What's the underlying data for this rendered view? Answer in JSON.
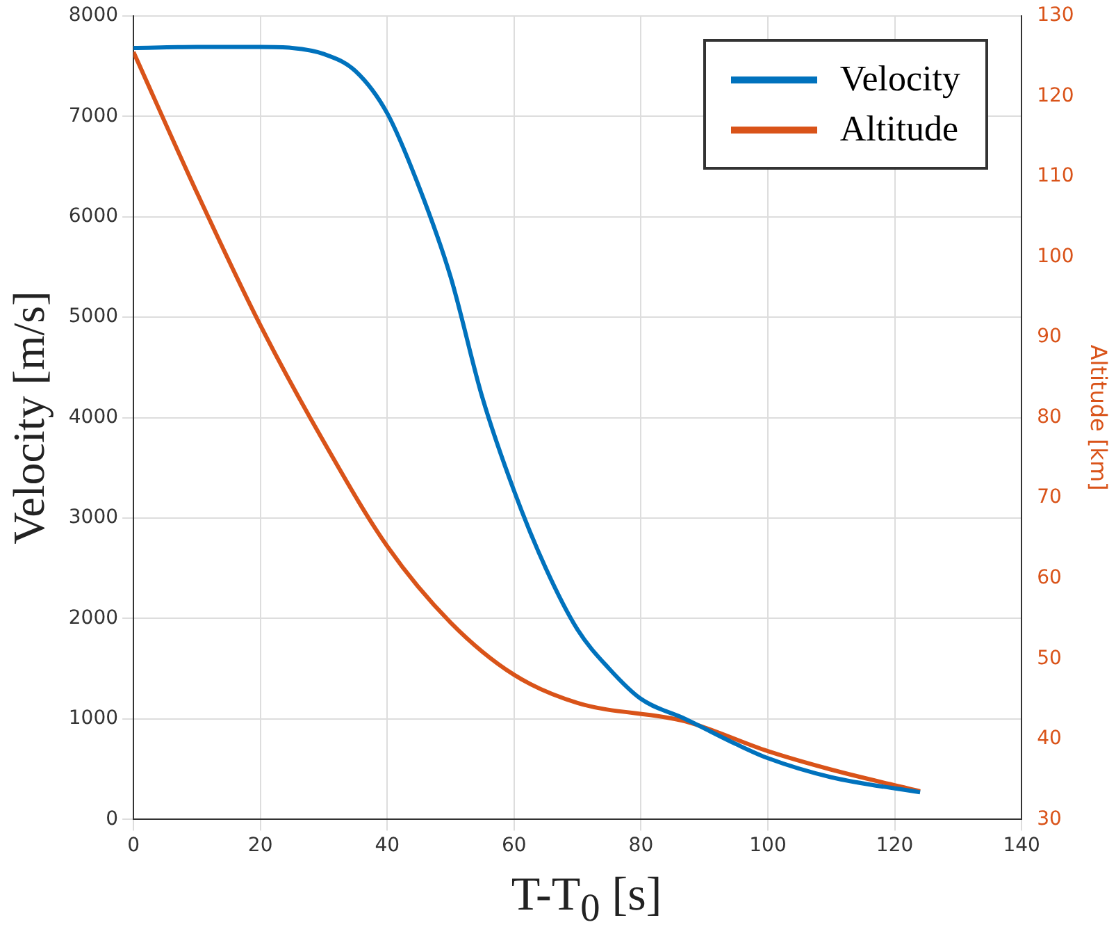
{
  "chart_data": {
    "type": "line",
    "xlabel": "T-T$_{0}$ [s]",
    "ylabel": "Velocity [m/s]",
    "y2label": "Altitude [km]",
    "xlim": [
      0,
      140
    ],
    "xticks": [
      0,
      20,
      40,
      60,
      80,
      100,
      120,
      140
    ],
    "ylim": [
      0,
      8000
    ],
    "yticks": [
      0,
      1000,
      2000,
      3000,
      4000,
      5000,
      6000,
      7000,
      8000
    ],
    "y2lim": [
      30,
      130
    ],
    "y2ticks": [
      30,
      40,
      50,
      60,
      70,
      80,
      90,
      100,
      110,
      120,
      130
    ],
    "grid": true,
    "legend": "top right",
    "marker": "none",
    "line_style": "solid",
    "series": [
      {
        "name": "Velocity",
        "color": "#0072bd",
        "x": [
          0,
          10,
          20,
          25,
          30,
          35,
          40,
          45,
          50,
          55,
          60,
          65,
          70,
          75,
          80,
          87,
          95,
          100,
          110,
          124
        ],
        "values": [
          7680,
          7690,
          7690,
          7680,
          7620,
          7450,
          7030,
          6300,
          5400,
          4200,
          3270,
          2500,
          1890,
          1500,
          1200,
          1000,
          750,
          610,
          420,
          270
        ]
      },
      {
        "name": "Altitude",
        "color": "#d95319",
        "axis": "y2",
        "x": [
          0,
          10,
          20,
          30,
          40,
          50,
          60,
          70,
          87,
          100,
          110,
          124
        ],
        "values": [
          125.5,
          108,
          91.5,
          77,
          64,
          54.5,
          48,
          44.5,
          42.2,
          38.5,
          36.2,
          33.5
        ]
      }
    ]
  }
}
